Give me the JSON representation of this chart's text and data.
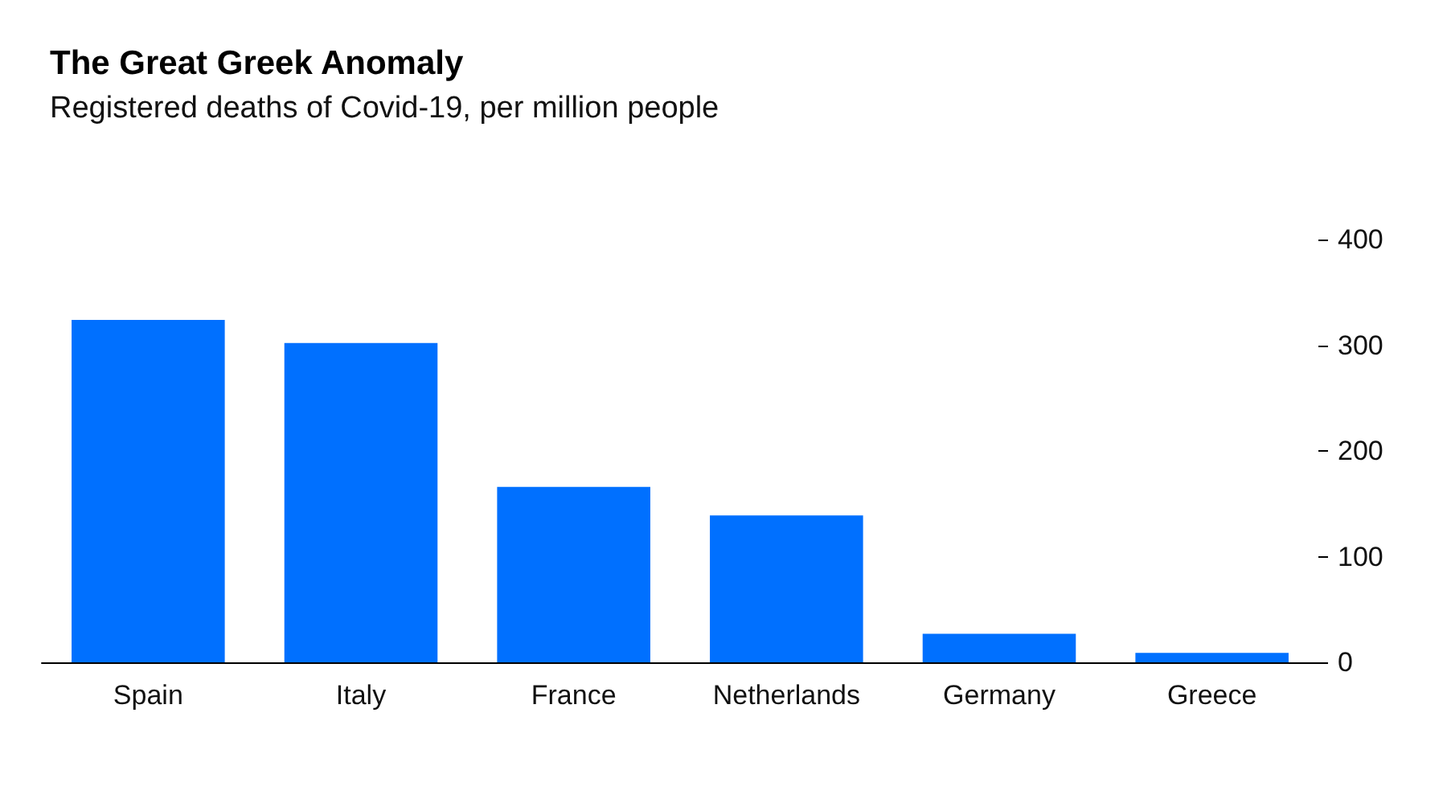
{
  "chart_data": {
    "type": "bar",
    "title": "The Great Greek Anomaly",
    "subtitle": "Registered deaths of Covid-19, per million people",
    "categories": [
      "Spain",
      "Italy",
      "France",
      "Netherlands",
      "Germany",
      "Greece"
    ],
    "values": [
      324,
      302,
      166,
      139,
      27,
      9
    ],
    "color": "#0070ff",
    "ylim": [
      0,
      400
    ],
    "yticks": [
      0,
      100,
      200,
      300,
      400
    ],
    "grid": false
  }
}
